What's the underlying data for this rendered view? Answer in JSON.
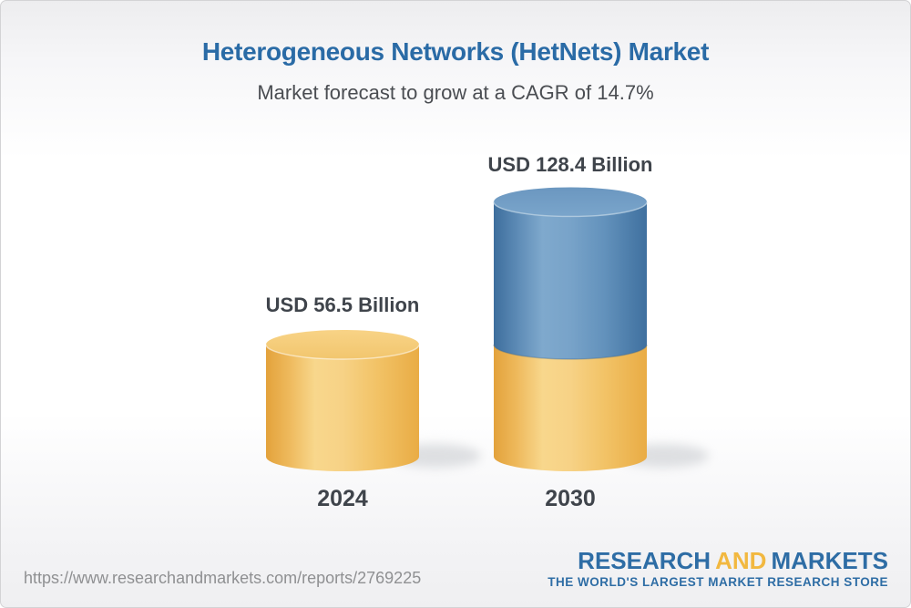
{
  "header": {
    "title": "Heterogeneous Networks (HetNets) Market",
    "subtitle": "Market forecast to grow at a CAGR of 14.7%",
    "title_color": "#2a6ba6",
    "subtitle_color": "#4a4d52"
  },
  "chart_data": {
    "type": "bar",
    "subtype": "3d_cylinder_stacked",
    "title": "Heterogeneous Networks (HetNets) Market",
    "subtitle": "Market forecast to grow at a CAGR of 14.7%",
    "categories": [
      "2024",
      "2030"
    ],
    "values": [
      56.5,
      128.4
    ],
    "unit": "USD Billion",
    "value_labels": [
      "USD 56.5 Billion",
      "USD 128.4 Billion"
    ],
    "cagr_percent": 14.7,
    "ylim": [
      0,
      140
    ],
    "grid": false,
    "legend_position": "none",
    "bar_notes": "2030 cylinder is stacked: yellow base segment equals the 2024 value, blue top segment is the growth to 128.4",
    "colors": {
      "base_segment_yellow": "#f5ce7c",
      "growth_segment_blue": "#6d9ac3",
      "label_text": "#3f444b"
    }
  },
  "footer": {
    "url": "https://www.researchandmarkets.com/reports/2769225",
    "logo": {
      "word1": "RESEARCH",
      "word2": "AND",
      "word3": "MARKETS",
      "tagline": "THE WORLD'S LARGEST MARKET RESEARCH STORE",
      "blue": "#2e6da5",
      "gold": "#f2b840"
    }
  }
}
